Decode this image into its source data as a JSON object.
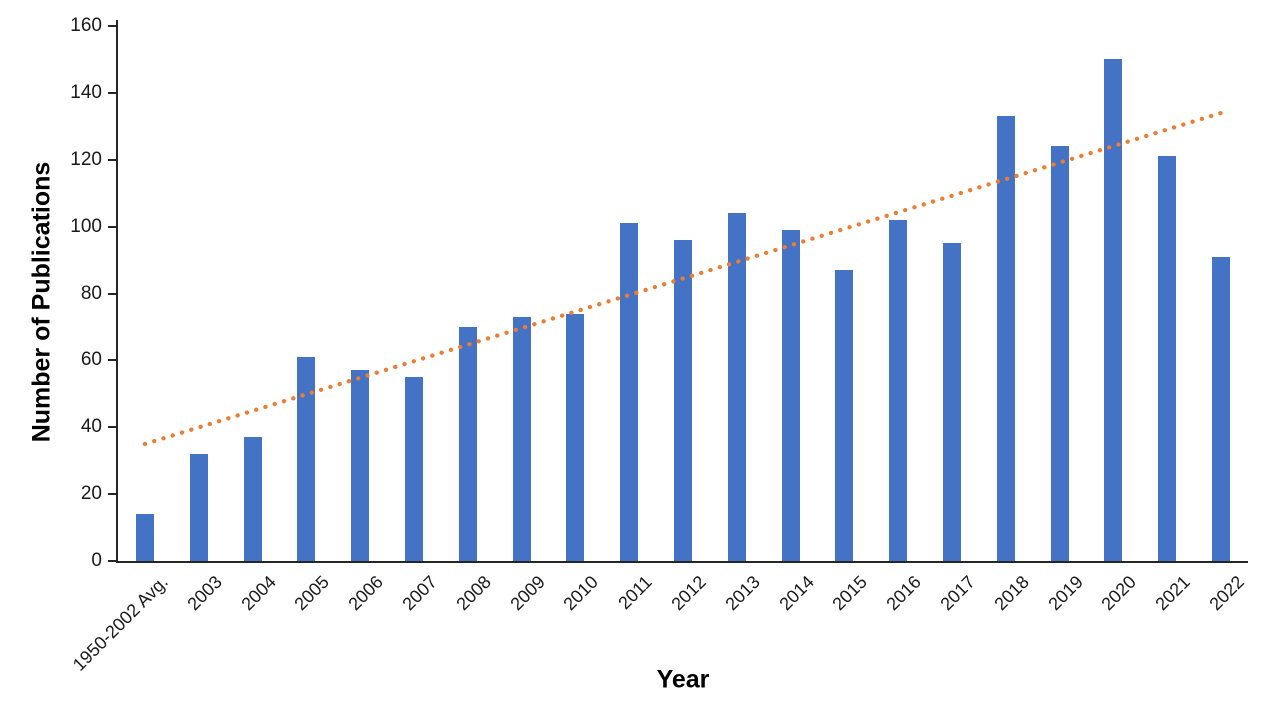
{
  "chart_data": {
    "type": "bar",
    "title": "",
    "xlabel": "Year",
    "ylabel": "Number of Publications",
    "categories": [
      "1950-2002 Avg.",
      "2003",
      "2004",
      "2005",
      "2006",
      "2007",
      "2008",
      "2009",
      "2010",
      "2011",
      "2012",
      "2013",
      "2014",
      "2015",
      "2016",
      "2017",
      "2018",
      "2019",
      "2020",
      "2021",
      "2022"
    ],
    "values": [
      14,
      32,
      37,
      61,
      57,
      55,
      70,
      73,
      74,
      101,
      96,
      104,
      99,
      87,
      102,
      95,
      133,
      124,
      150,
      121,
      91
    ],
    "ylim": [
      0,
      160
    ],
    "ytick_step": 20,
    "yticks": [
      0,
      20,
      40,
      60,
      80,
      100,
      120,
      140,
      160
    ],
    "grid": false,
    "legend": false,
    "bar_color": "#4472C4",
    "axis_color": "#262626",
    "trendline": {
      "type": "linear",
      "style": "dotted",
      "color": "#ED7D31",
      "start_value": 35,
      "end_value": 134
    }
  }
}
